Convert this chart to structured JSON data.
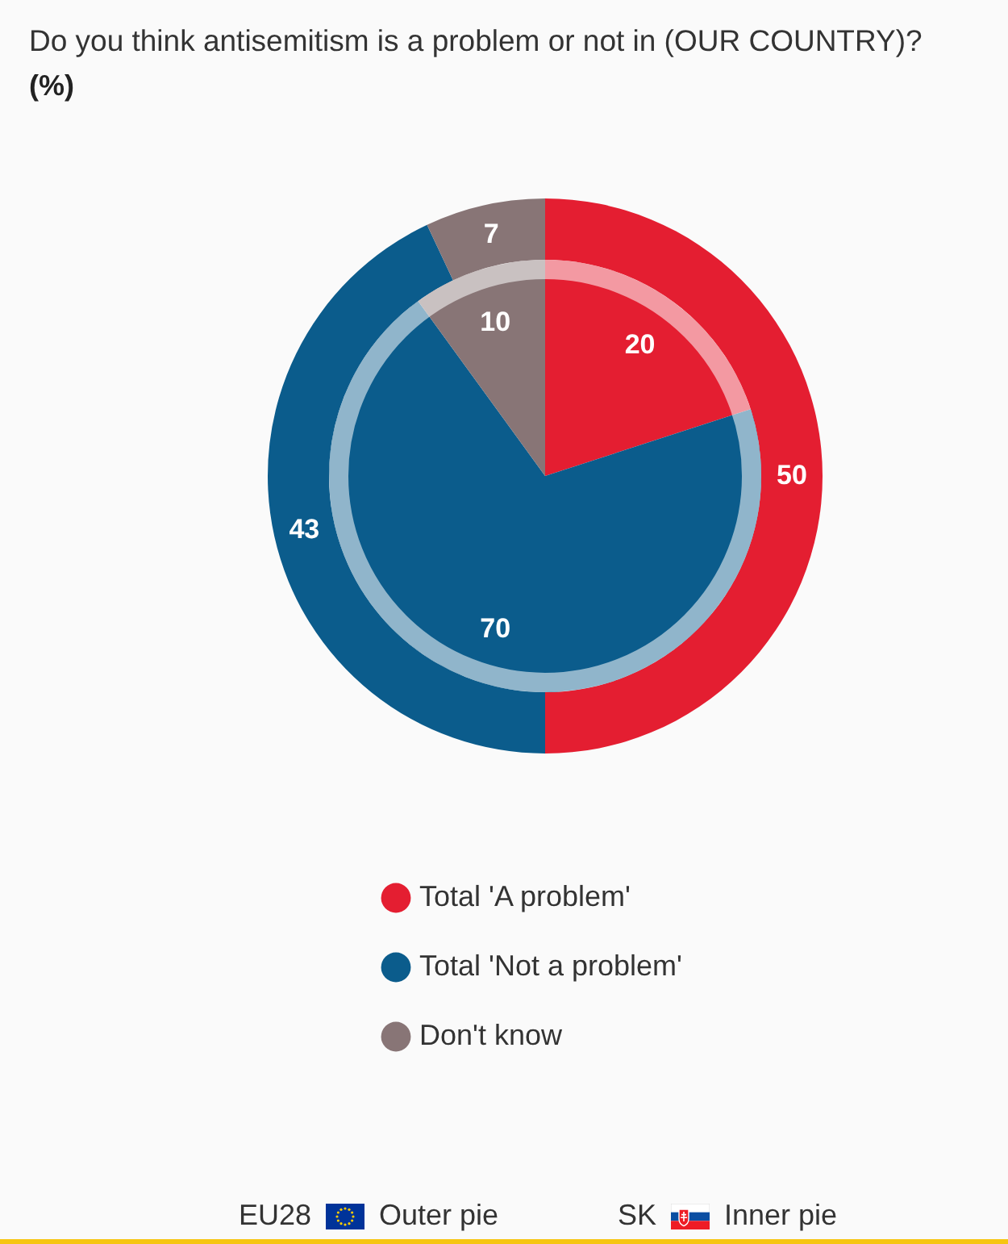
{
  "chart_data": {
    "type": "pie",
    "title": "Do you think antisemitism is a problem or not in (OUR COUNTRY)?",
    "subtitle": "(%)",
    "categories": [
      "Total 'A problem'",
      "Total 'Not a problem'",
      "Don't know"
    ],
    "colors": [
      "#e41e31",
      "#0b5c8c",
      "#887576"
    ],
    "series": [
      {
        "values": [
          50,
          43,
          7
        ]
      },
      {
        "values": [
          20,
          70,
          10
        ]
      }
    ],
    "annotations": [
      "EU28",
      "Outer pie",
      "SK",
      "Inner pie"
    ],
    "data_labels": true,
    "legend": "bottom"
  }
}
